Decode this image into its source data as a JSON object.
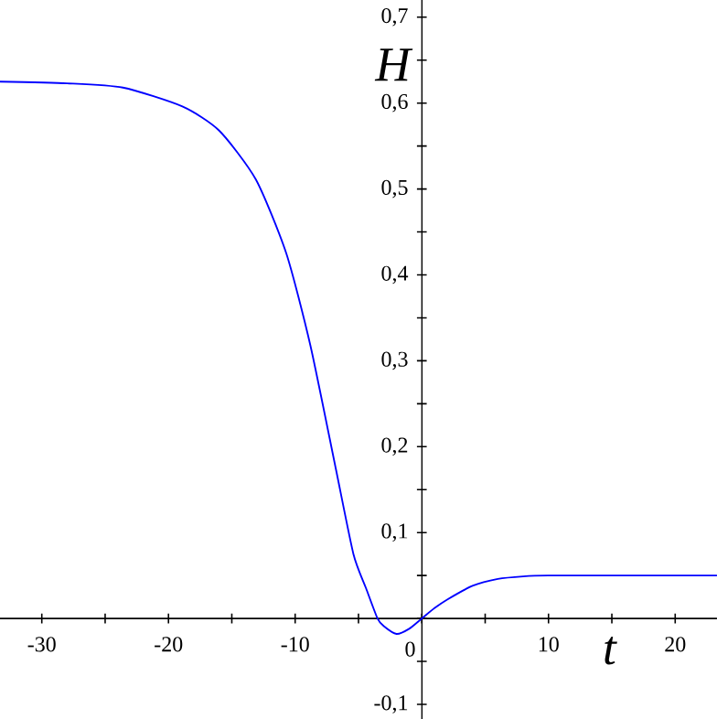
{
  "chart_data": {
    "type": "line",
    "xlabel": "t",
    "ylabel": "H",
    "color": "#0000ff",
    "x": [
      -33.3,
      -28,
      -23.6,
      -18.9,
      -16.0,
      -13.1,
      -10.7,
      -8.8,
      -6.8,
      -5.4,
      -4.4,
      -3.5,
      -3,
      -2,
      -1,
      0,
      1,
      2,
      4,
      6,
      8,
      10,
      15,
      23.3
    ],
    "values": [
      0.625,
      0.623,
      0.618,
      0.596,
      0.568,
      0.511,
      0.425,
      0.318,
      0.175,
      0.075,
      0.035,
      0.0,
      -0.009,
      -0.018,
      -0.012,
      0.0,
      0.012,
      0.022,
      0.038,
      0.046,
      0.049,
      0.05,
      0.05,
      0.05
    ],
    "xlim": [
      -33.3,
      23.3
    ],
    "ylim": [
      -0.117,
      0.72
    ],
    "xticks": [
      -30,
      {
        "value": -25,
        "label": null
      },
      -20,
      {
        "value": -15,
        "label": null
      },
      -10,
      {
        "value": -5,
        "label": null
      },
      0,
      {
        "value": 5,
        "label": null
      },
      10,
      {
        "value": 15,
        "label": null
      },
      20
    ],
    "yticks": [
      {
        "value": -0.1,
        "label": "-0,1"
      },
      {
        "value": -0.05,
        "label": null
      },
      {
        "value": 0,
        "label": null
      },
      {
        "value": 0.05,
        "label": null
      },
      {
        "value": 0.1,
        "label": "0,1"
      },
      {
        "value": 0.15,
        "label": null
      },
      {
        "value": 0.2,
        "label": "0,2"
      },
      {
        "value": 0.25,
        "label": null
      },
      {
        "value": 0.3,
        "label": "0,3"
      },
      {
        "value": 0.35,
        "label": null
      },
      {
        "value": 0.4,
        "label": "0,4"
      },
      {
        "value": 0.45,
        "label": null
      },
      {
        "value": 0.5,
        "label": "0,5"
      },
      {
        "value": 0.55,
        "label": null
      },
      {
        "value": 0.6,
        "label": "0,6"
      },
      {
        "value": 0.65,
        "label": null
      },
      {
        "value": 0.7,
        "label": "0,7"
      }
    ],
    "grid": false,
    "marker": "none",
    "line_style": "solid"
  }
}
